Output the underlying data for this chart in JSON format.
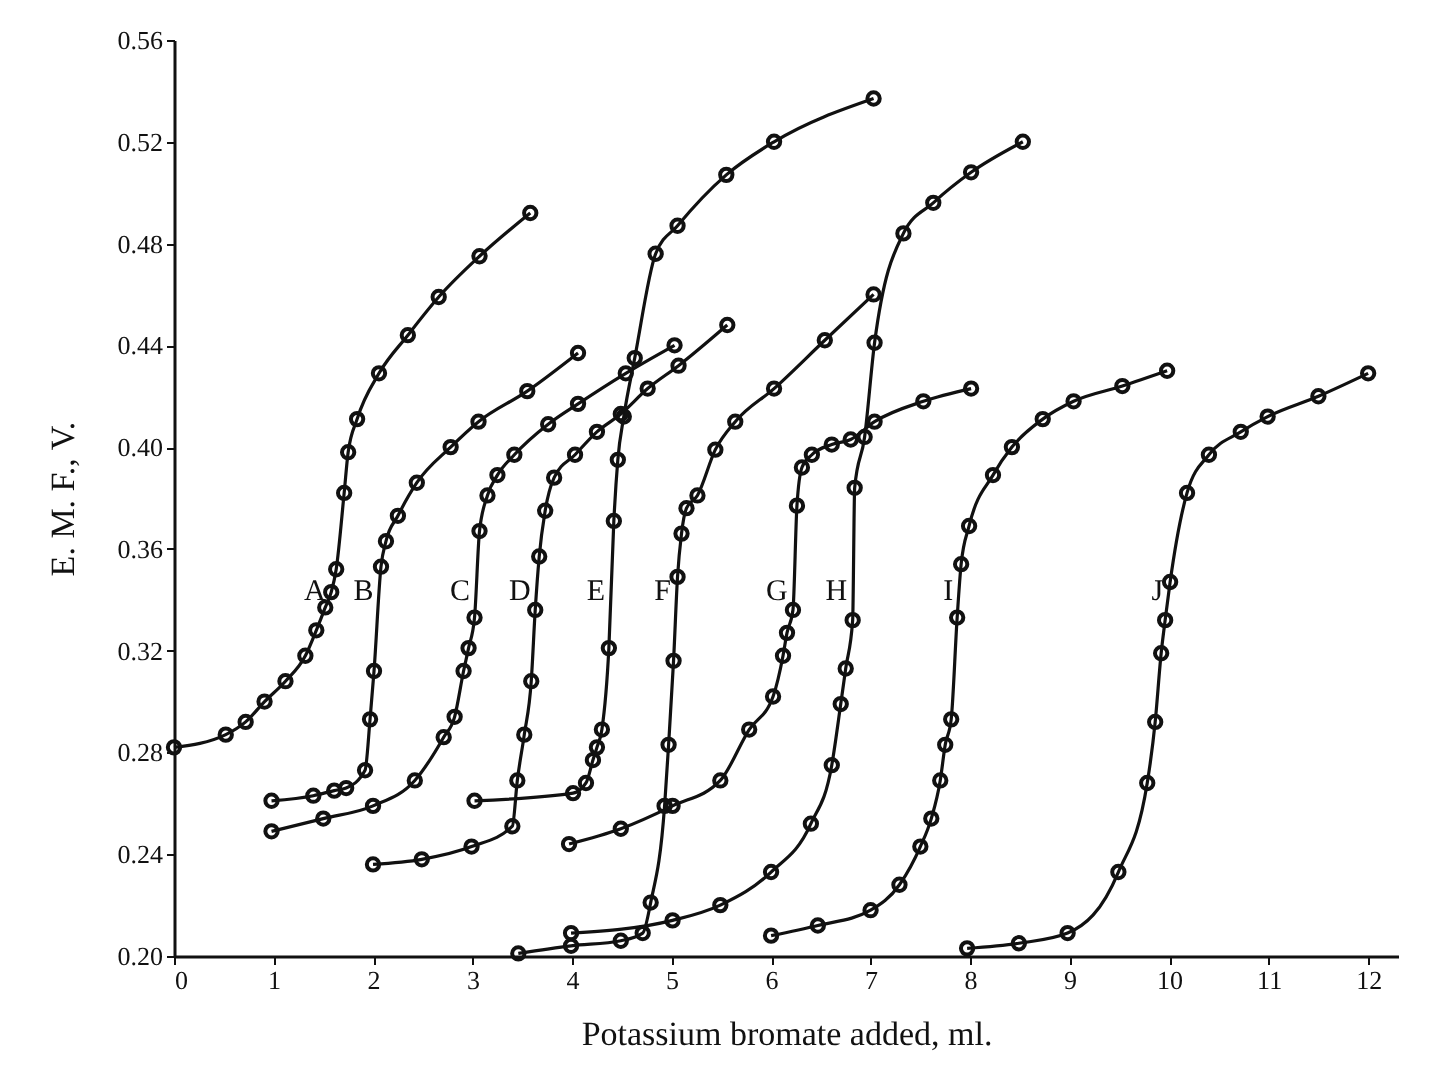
{
  "chart_data": {
    "type": "line",
    "xlabel": "Potassium bromate added, ml.",
    "ylabel": "E. M. F., V.",
    "xlim": [
      0,
      12.3
    ],
    "ylim": [
      0.2,
      0.56
    ],
    "xticks": [
      0,
      1,
      2,
      3,
      4,
      5,
      6,
      7,
      8,
      9,
      10,
      11,
      12
    ],
    "yticks": [
      {
        "value": 0.2,
        "label": "0.20"
      },
      {
        "value": 0.24,
        "label": "0.24"
      },
      {
        "value": 0.28,
        "label": "0.28"
      },
      {
        "value": 0.32,
        "label": "0.32"
      },
      {
        "value": 0.36,
        "label": "0.36"
      },
      {
        "value": 0.4,
        "label": "0.40"
      },
      {
        "value": 0.44,
        "label": "0.44"
      },
      {
        "value": 0.48,
        "label": "0.48"
      },
      {
        "value": 0.52,
        "label": "0.52"
      },
      {
        "value": 0.56,
        "label": "0.56"
      }
    ],
    "grid": false,
    "marker": "circle",
    "line_style": "solid",
    "series": [
      {
        "name": "A",
        "color": "#111111",
        "x": [
          0,
          0.52,
          0.72,
          0.91,
          1.12,
          1.32,
          1.43,
          1.52,
          1.58,
          1.63,
          1.71,
          1.75,
          1.84,
          2.06,
          2.35,
          2.66,
          3.07,
          3.58
        ],
        "values": [
          0.282,
          0.287,
          0.292,
          0.3,
          0.308,
          0.318,
          0.328,
          0.337,
          0.343,
          0.352,
          0.382,
          0.398,
          0.411,
          0.429,
          0.444,
          0.459,
          0.475,
          0.492
        ]
      },
      {
        "name": "B",
        "color": "#111111",
        "x": [
          0.98,
          1.4,
          1.61,
          1.73,
          1.92,
          1.97,
          2.01,
          2.08,
          2.13,
          2.25,
          2.44,
          2.78,
          3.06,
          3.55,
          4.06
        ],
        "values": [
          0.261,
          0.263,
          0.265,
          0.266,
          0.273,
          0.293,
          0.312,
          0.353,
          0.363,
          0.373,
          0.386,
          0.4,
          0.41,
          0.422,
          0.437
        ]
      },
      {
        "name": "C",
        "color": "#111111",
        "x": [
          0.98,
          1.5,
          2.0,
          2.42,
          2.71,
          2.82,
          2.91,
          2.96,
          3.02,
          3.07,
          3.15,
          3.25,
          3.42,
          3.76,
          4.06,
          4.54,
          5.03
        ],
        "values": [
          0.249,
          0.254,
          0.259,
          0.269,
          0.286,
          0.294,
          0.312,
          0.321,
          0.333,
          0.367,
          0.381,
          0.389,
          0.397,
          0.409,
          0.417,
          0.429,
          0.44
        ]
      },
      {
        "name": "D",
        "color": "#111111",
        "x": [
          2.0,
          2.49,
          2.99,
          3.4,
          3.45,
          3.52,
          3.59,
          3.63,
          3.67,
          3.73,
          3.82,
          4.03,
          4.25,
          4.49,
          4.76,
          5.07,
          5.56
        ],
        "values": [
          0.236,
          0.238,
          0.243,
          0.251,
          0.269,
          0.287,
          0.308,
          0.336,
          0.357,
          0.375,
          0.388,
          0.397,
          0.406,
          0.413,
          0.423,
          0.432,
          0.448
        ]
      },
      {
        "name": "E",
        "color": "#111111",
        "x": [
          3.02,
          4.01,
          4.14,
          4.21,
          4.25,
          4.3,
          4.37,
          4.42,
          4.46,
          4.52,
          4.63,
          4.84,
          5.06,
          5.55,
          6.03,
          7.03
        ],
        "values": [
          0.261,
          0.264,
          0.268,
          0.277,
          0.282,
          0.289,
          0.321,
          0.371,
          0.395,
          0.412,
          0.435,
          0.476,
          0.487,
          0.507,
          0.52,
          0.537
        ]
      },
      {
        "name": "F",
        "color": "#111111",
        "x": [
          3.46,
          3.99,
          4.49,
          4.71,
          4.79,
          4.93,
          4.97,
          5.02,
          5.06,
          5.1,
          5.15,
          5.26,
          5.44,
          5.64,
          6.03,
          6.54,
          7.03
        ],
        "values": [
          0.201,
          0.204,
          0.206,
          0.209,
          0.221,
          0.259,
          0.283,
          0.316,
          0.349,
          0.366,
          0.376,
          0.381,
          0.399,
          0.41,
          0.423,
          0.442,
          0.46
        ]
      },
      {
        "name": "G",
        "color": "#111111",
        "x": [
          3.97,
          4.49,
          5.01,
          5.49,
          5.78,
          6.02,
          6.12,
          6.16,
          6.22,
          6.26,
          6.31,
          6.41,
          6.61,
          6.8,
          7.04,
          7.53,
          8.01
        ],
        "values": [
          0.244,
          0.25,
          0.259,
          0.269,
          0.289,
          0.302,
          0.318,
          0.327,
          0.336,
          0.377,
          0.392,
          0.397,
          0.401,
          0.403,
          0.41,
          0.418,
          0.423
        ]
      },
      {
        "name": "H",
        "color": "#111111",
        "x": [
          3.99,
          5.01,
          5.49,
          6.0,
          6.4,
          6.61,
          6.7,
          6.75,
          6.82,
          6.84,
          6.94,
          7.04,
          7.33,
          7.63,
          8.01,
          8.53
        ],
        "values": [
          0.209,
          0.214,
          0.22,
          0.233,
          0.252,
          0.275,
          0.299,
          0.313,
          0.332,
          0.384,
          0.404,
          0.441,
          0.484,
          0.496,
          0.508,
          0.52
        ]
      },
      {
        "name": "I",
        "color": "#111111",
        "x": [
          6.0,
          6.47,
          7.0,
          7.29,
          7.5,
          7.61,
          7.7,
          7.75,
          7.81,
          7.87,
          7.91,
          7.99,
          8.23,
          8.42,
          8.73,
          9.04,
          9.53,
          9.98
        ],
        "values": [
          0.208,
          0.212,
          0.218,
          0.228,
          0.243,
          0.254,
          0.269,
          0.283,
          0.293,
          0.333,
          0.354,
          0.369,
          0.389,
          0.4,
          0.411,
          0.418,
          0.424,
          0.43
        ]
      },
      {
        "name": "J",
        "color": "#111111",
        "x": [
          7.97,
          8.49,
          8.98,
          9.49,
          9.78,
          9.86,
          9.92,
          9.96,
          10.01,
          10.18,
          10.4,
          10.72,
          10.99,
          11.5,
          12.0
        ],
        "values": [
          0.203,
          0.205,
          0.209,
          0.233,
          0.268,
          0.292,
          0.319,
          0.332,
          0.347,
          0.382,
          0.397,
          0.406,
          0.412,
          0.42,
          0.429
        ]
      }
    ]
  }
}
